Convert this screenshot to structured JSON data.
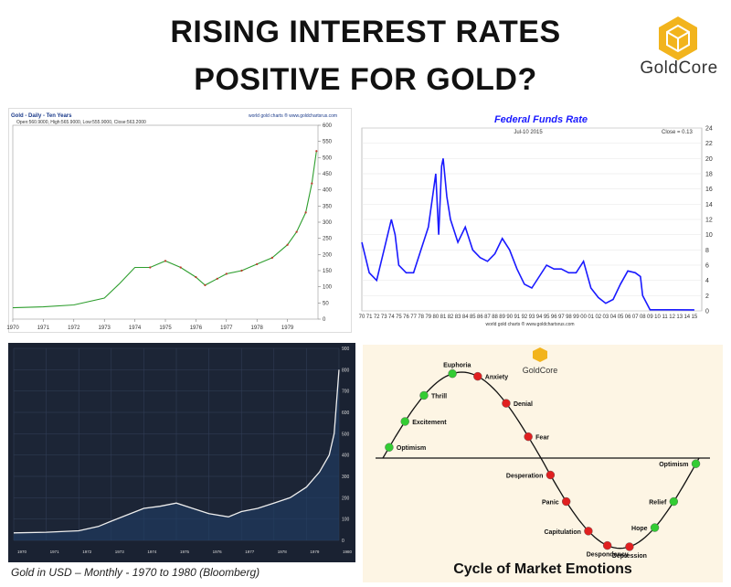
{
  "header": {
    "title_line1": "RISING INTEREST RATES",
    "title_line2": "POSITIVE FOR GOLD?"
  },
  "brand": {
    "name": "GoldCore",
    "color": "#f2b41d"
  },
  "chart_data": [
    {
      "type": "line",
      "title": "Gold - Daily - Ten Years",
      "source": "world gold charts ® www.goldchartsrus.com",
      "legend": "Open:560.9000, High:565.9000, Low:555.9000, Close:563.2000",
      "x": [
        1970,
        1971,
        1972,
        1973,
        1973.5,
        1974,
        1974.5,
        1975,
        1975.5,
        1976,
        1976.3,
        1976.7,
        1977,
        1977.5,
        1978,
        1978.5,
        1979,
        1979.3,
        1979.6,
        1979.8,
        1979.95
      ],
      "values": [
        35,
        38,
        44,
        65,
        110,
        160,
        160,
        180,
        160,
        130,
        105,
        125,
        140,
        150,
        170,
        190,
        230,
        270,
        330,
        420,
        520
      ],
      "xticks": [
        "1970",
        "1971",
        "1972",
        "1973",
        "1974",
        "1975",
        "1976",
        "1977",
        "1978",
        "1979"
      ],
      "yticks": [
        0,
        50,
        100,
        150,
        200,
        250,
        300,
        350,
        400,
        450,
        500,
        550,
        600
      ],
      "xlim": [
        1970,
        1980
      ],
      "ylim": [
        0,
        600
      ],
      "color": "#2e9e2e"
    },
    {
      "type": "line",
      "title": "Federal Funds Rate",
      "subtitle": "Jul-10 2015",
      "close_label": "Close = 0.13",
      "source": "world gold charts ® www.goldchartsrus.com",
      "x": [
        1970,
        1971,
        1972,
        1973,
        1974,
        1974.5,
        1975,
        1976,
        1977,
        1978,
        1979,
        1980,
        1980.4,
        1980.8,
        1981,
        1981.5,
        1982,
        1983,
        1984,
        1985,
        1986,
        1987,
        1988,
        1989,
        1990,
        1991,
        1992,
        1993,
        1994,
        1995,
        1996,
        1997,
        1998,
        1999,
        2000,
        2001,
        2002,
        2003,
        2004,
        2005,
        2006,
        2007,
        2007.7,
        2008,
        2009,
        2010,
        2012,
        2015
      ],
      "values": [
        9,
        5,
        4,
        8,
        12,
        10,
        6,
        5,
        5,
        8,
        11,
        18,
        10,
        19,
        20,
        15,
        12,
        9,
        11,
        8,
        7,
        6.5,
        7.5,
        9.5,
        8,
        5.5,
        3.5,
        3,
        4.5,
        6,
        5.5,
        5.5,
        5,
        5,
        6.5,
        3,
        1.75,
        1,
        1.5,
        3.5,
        5.25,
        5,
        4.5,
        2,
        0.15,
        0.15,
        0.15,
        0.13
      ],
      "xticks": [
        "70",
        "71",
        "72",
        "73",
        "74",
        "75",
        "76",
        "77",
        "78",
        "79",
        "80",
        "81",
        "82",
        "83",
        "84",
        "85",
        "86",
        "87",
        "88",
        "89",
        "90",
        "91",
        "92",
        "93",
        "94",
        "95",
        "96",
        "97",
        "98",
        "99",
        "00",
        "01",
        "02",
        "03",
        "04",
        "05",
        "06",
        "07",
        "08",
        "09",
        "10",
        "11",
        "12",
        "13",
        "14",
        "15"
      ],
      "yticks": [
        0,
        2,
        4,
        6,
        8,
        10,
        12,
        14,
        16,
        18,
        20,
        22,
        24
      ],
      "xlim": [
        1970,
        2016
      ],
      "ylim": [
        0,
        24
      ],
      "color": "#1a1aff"
    },
    {
      "type": "area",
      "caption": "Gold in USD – Monthly - 1970 to 1980 (Bloomberg)",
      "x": [
        1970,
        1971,
        1972,
        1972.6,
        1973,
        1973.5,
        1974,
        1974.5,
        1975,
        1975.5,
        1976,
        1976.6,
        1977,
        1977.5,
        1978,
        1978.5,
        1979,
        1979.4,
        1979.7,
        1979.85,
        1980
      ],
      "values": [
        35,
        38,
        45,
        65,
        90,
        120,
        150,
        160,
        175,
        150,
        125,
        110,
        135,
        150,
        175,
        200,
        250,
        320,
        400,
        500,
        800
      ],
      "yticks": [
        0,
        100,
        200,
        300,
        400,
        500,
        600,
        700,
        800,
        900
      ],
      "year_labels": [
        "1970",
        "1971",
        "1972",
        "1973",
        "1974",
        "1975",
        "1976",
        "1977",
        "1978",
        "1979",
        "1980"
      ],
      "xlim": [
        1970,
        1980
      ],
      "ylim": [
        0,
        900
      ],
      "color": "#eeeeee"
    },
    {
      "type": "diagram",
      "title": "Cycle of Market Emotions",
      "brand": "GoldCore",
      "stages": [
        {
          "label": "Optimism",
          "color": "green",
          "t": 0.02
        },
        {
          "label": "Excitement",
          "color": "green",
          "t": 0.07
        },
        {
          "label": "Thrill",
          "color": "green",
          "t": 0.13
        },
        {
          "label": "Euphoria",
          "color": "green",
          "t": 0.22
        },
        {
          "label": "Anxiety",
          "color": "red",
          "t": 0.3
        },
        {
          "label": "Denial",
          "color": "red",
          "t": 0.39
        },
        {
          "label": "Fear",
          "color": "red",
          "t": 0.46
        },
        {
          "label": "Desperation",
          "color": "red",
          "t": 0.53
        },
        {
          "label": "Panic",
          "color": "red",
          "t": 0.58
        },
        {
          "label": "Capitulation",
          "color": "red",
          "t": 0.65
        },
        {
          "label": "Despondency",
          "color": "red",
          "t": 0.71
        },
        {
          "label": "Depression",
          "color": "red",
          "t": 0.78
        },
        {
          "label": "Hope",
          "color": "green",
          "t": 0.86
        },
        {
          "label": "Relief",
          "color": "green",
          "t": 0.92
        },
        {
          "label": "Optimism",
          "color": "green",
          "t": 0.99
        }
      ],
      "colors": {
        "green": "#33cc33",
        "red": "#e02020"
      }
    }
  ]
}
